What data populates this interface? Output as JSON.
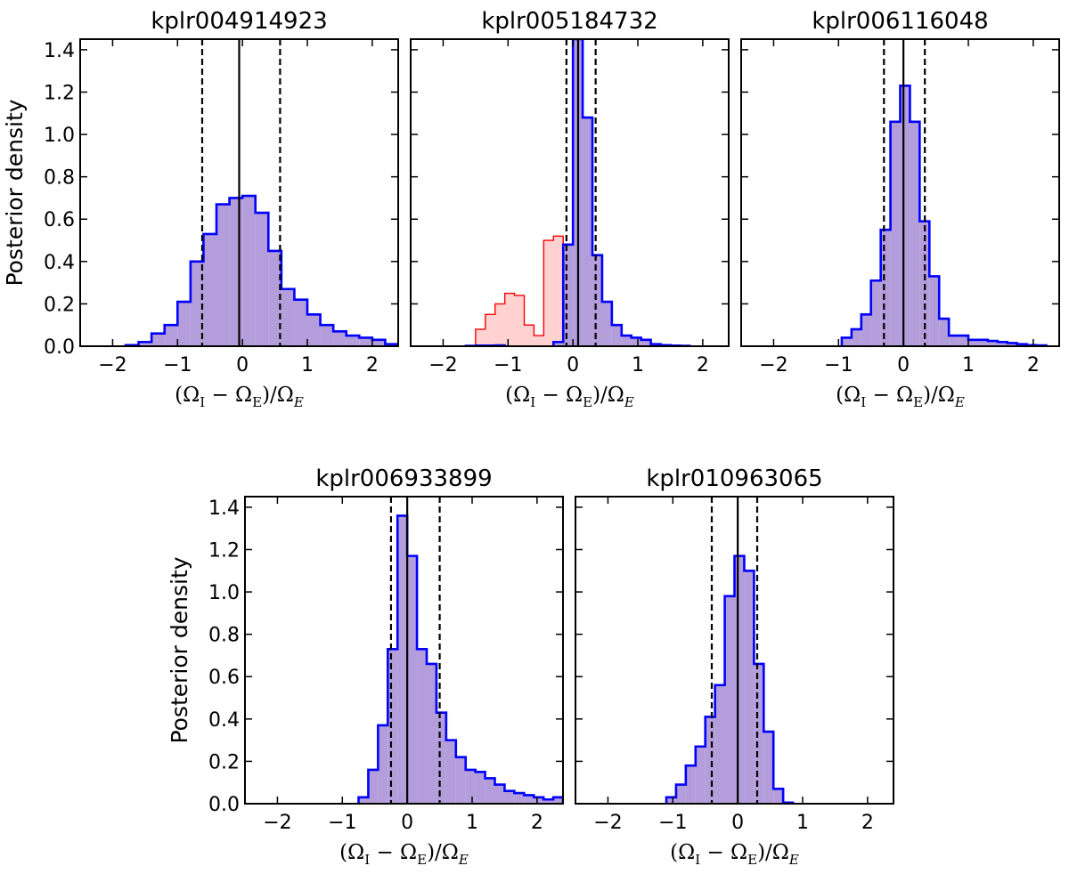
{
  "chart_data": [
    {
      "type": "histogram",
      "title": "kplr004914923",
      "xlabel": "(Ω_I − Ω_E)/Ω_E",
      "ylabel": "Posterior density",
      "xlim": [
        -2.5,
        2.4
      ],
      "ylim": [
        0,
        1.45
      ],
      "xticks": [
        -2,
        -1,
        0,
        1,
        2
      ],
      "yticks": [
        0.0,
        0.2,
        0.4,
        0.6,
        0.8,
        1.0,
        1.2,
        1.4
      ],
      "bin_width": 0.2,
      "series": [
        {
          "name": "posterior",
          "color": "#0000ff",
          "fill": "#b39ddb",
          "bin_starts": [
            -1.8,
            -1.6,
            -1.4,
            -1.2,
            -1.0,
            -0.8,
            -0.6,
            -0.4,
            -0.2,
            0.0,
            0.2,
            0.4,
            0.6,
            0.8,
            1.0,
            1.2,
            1.4,
            1.6,
            1.8,
            2.0,
            2.2
          ],
          "values": [
            0.005,
            0.02,
            0.06,
            0.1,
            0.21,
            0.4,
            0.53,
            0.67,
            0.7,
            0.71,
            0.63,
            0.45,
            0.27,
            0.22,
            0.15,
            0.1,
            0.07,
            0.05,
            0.04,
            0.03,
            0.01
          ]
        }
      ],
      "lines": {
        "median": -0.05,
        "lower": -0.62,
        "upper": 0.58
      }
    },
    {
      "type": "histogram",
      "title": "kplr005184732",
      "xlabel": "(Ω_I − Ω_E)/Ω_E",
      "ylabel": "",
      "xlim": [
        -2.5,
        2.4
      ],
      "ylim": [
        0,
        1.45
      ],
      "xticks": [
        -2,
        -1,
        0,
        1,
        2
      ],
      "yticks": [],
      "bin_width": 0.15,
      "series": [
        {
          "name": "secondary",
          "color": "#ff0000",
          "fill": "#ffd1d1",
          "bin_starts": [
            -1.5,
            -1.35,
            -1.2,
            -1.05,
            -0.9,
            -0.75,
            -0.6,
            -0.45,
            -0.3
          ],
          "values": [
            0.08,
            0.15,
            0.2,
            0.25,
            0.24,
            0.1,
            0.05,
            0.5,
            0.52
          ]
        },
        {
          "name": "posterior",
          "color": "#0000ff",
          "fill": "#b39ddb",
          "bin_starts": [
            -1.65,
            -1.5,
            -1.35,
            -1.2,
            -0.3,
            -0.15,
            0.0,
            0.15,
            0.3,
            0.45,
            0.6,
            0.75,
            0.9,
            1.05,
            1.2,
            1.35,
            1.5,
            1.65
          ],
          "values": [
            0.002,
            0.003,
            0.003,
            0.004,
            0.02,
            0.48,
            1.45,
            1.08,
            0.43,
            0.21,
            0.1,
            0.05,
            0.04,
            0.03,
            0.01,
            0.005,
            0.003,
            0.002
          ]
        }
      ],
      "lines": {
        "median": 0.08,
        "lower": -0.1,
        "upper": 0.35
      }
    },
    {
      "type": "histogram",
      "title": "kplr006116048",
      "xlabel": "(Ω_I − Ω_E)/Ω_E",
      "ylabel": "",
      "xlim": [
        -2.5,
        2.4
      ],
      "ylim": [
        0,
        1.45
      ],
      "xticks": [
        -2,
        -1,
        0,
        1,
        2
      ],
      "yticks": [],
      "bin_width": 0.15,
      "series": [
        {
          "name": "posterior",
          "color": "#0000ff",
          "fill": "#b39ddb",
          "bin_starts": [
            -0.95,
            -0.8,
            -0.65,
            -0.5,
            -0.35,
            -0.2,
            -0.05,
            0.1,
            0.25,
            0.4,
            0.55,
            0.7,
            0.85,
            1.0,
            1.15,
            1.3,
            1.45,
            1.6,
            1.75,
            1.9,
            2.05
          ],
          "values": [
            0.04,
            0.08,
            0.15,
            0.31,
            0.55,
            1.06,
            1.23,
            1.06,
            0.59,
            0.33,
            0.13,
            0.05,
            0.05,
            0.03,
            0.03,
            0.025,
            0.02,
            0.015,
            0.01,
            0.005,
            0.004
          ]
        }
      ],
      "lines": {
        "median": 0.0,
        "lower": -0.3,
        "upper": 0.33
      }
    },
    {
      "type": "histogram",
      "title": "kplr006933899",
      "xlabel": "(Ω_I − Ω_E)/Ω_E",
      "ylabel": "Posterior density",
      "xlim": [
        -2.5,
        2.4
      ],
      "ylim": [
        0,
        1.45
      ],
      "xticks": [
        -2,
        -1,
        0,
        1,
        2
      ],
      "yticks": [
        0.0,
        0.2,
        0.4,
        0.6,
        0.8,
        1.0,
        1.2,
        1.4
      ],
      "bin_width": 0.15,
      "series": [
        {
          "name": "posterior",
          "color": "#0000ff",
          "fill": "#b39ddb",
          "bin_starts": [
            -0.75,
            -0.6,
            -0.45,
            -0.3,
            -0.15,
            0.0,
            0.15,
            0.3,
            0.45,
            0.6,
            0.75,
            0.9,
            1.05,
            1.2,
            1.35,
            1.5,
            1.65,
            1.8,
            1.95,
            2.1,
            2.25
          ],
          "values": [
            0.03,
            0.16,
            0.37,
            0.73,
            1.36,
            1.17,
            0.73,
            0.66,
            0.43,
            0.3,
            0.22,
            0.16,
            0.15,
            0.12,
            0.09,
            0.06,
            0.05,
            0.04,
            0.03,
            0.02,
            0.03
          ]
        }
      ],
      "lines": {
        "median": 0.0,
        "lower": -0.25,
        "upper": 0.5
      }
    },
    {
      "type": "histogram",
      "title": "kplr010963065",
      "xlabel": "(Ω_I − Ω_E)/Ω_E",
      "ylabel": "",
      "xlim": [
        -2.5,
        2.4
      ],
      "ylim": [
        0,
        1.45
      ],
      "xticks": [
        -2,
        -1,
        0,
        1,
        2
      ],
      "yticks": [],
      "bin_width": 0.15,
      "series": [
        {
          "name": "posterior",
          "color": "#0000ff",
          "fill": "#b39ddb",
          "bin_starts": [
            -1.1,
            -0.95,
            -0.8,
            -0.65,
            -0.5,
            -0.35,
            -0.2,
            -0.05,
            0.1,
            0.25,
            0.4,
            0.55,
            0.7
          ],
          "values": [
            0.03,
            0.09,
            0.18,
            0.27,
            0.41,
            0.56,
            0.98,
            1.17,
            1.1,
            0.66,
            0.34,
            0.07,
            0.005
          ]
        }
      ],
      "lines": {
        "median": 0.0,
        "lower": -0.4,
        "upper": 0.3
      }
    }
  ]
}
